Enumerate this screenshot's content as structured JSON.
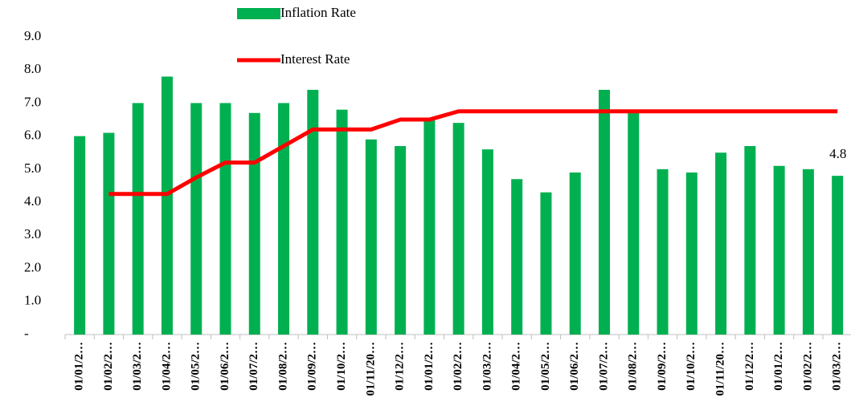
{
  "chart_data": {
    "type": "bar",
    "categories": [
      "01/01/2…",
      "01/02/2…",
      "01/03/2…",
      "01/04/2…",
      "01/05/2…",
      "01/06/2…",
      "01/07/2…",
      "01/08/2…",
      "01/09/2…",
      "01/10/2…",
      "01/11/20…",
      "01/12/2…",
      "01/01/2…",
      "01/02/2…",
      "01/03/2…",
      "01/04/2…",
      "01/05/2…",
      "01/06/2…",
      "01/07/2…",
      "01/08/2…",
      "01/09/2…",
      "01/10/2…",
      "01/11/20…",
      "01/12/2…",
      "01/01/2…",
      "01/02/2…",
      "01/03/2…"
    ],
    "series": [
      {
        "name": "Inflation Rate",
        "type": "bar",
        "color": "#00b050",
        "values": [
          6.0,
          6.1,
          7.0,
          7.8,
          7.0,
          7.0,
          6.7,
          7.0,
          7.4,
          6.8,
          5.9,
          5.7,
          6.5,
          6.4,
          5.6,
          4.7,
          4.3,
          4.9,
          7.4,
          6.8,
          5.0,
          4.9,
          5.5,
          5.7,
          5.1,
          5.0,
          4.8
        ],
        "value_labels": [
          null,
          null,
          null,
          null,
          null,
          null,
          null,
          null,
          null,
          null,
          null,
          null,
          null,
          null,
          null,
          null,
          null,
          null,
          null,
          null,
          null,
          null,
          null,
          null,
          null,
          null,
          "4.8"
        ]
      },
      {
        "name": "Interest Rate",
        "type": "line",
        "color": "#ff0000",
        "values": [
          null,
          4.25,
          4.25,
          4.25,
          4.75,
          5.2,
          5.2,
          5.7,
          6.2,
          6.2,
          6.2,
          6.5,
          6.5,
          6.75,
          6.75,
          6.75,
          6.75,
          6.75,
          6.75,
          6.75,
          6.75,
          6.75,
          6.75,
          6.75,
          6.75,
          6.75,
          6.75
        ]
      }
    ],
    "ylim": [
      0,
      9
    ],
    "yticks": [
      {
        "value": 0,
        "label": "-"
      },
      {
        "value": 1,
        "label": "1.0"
      },
      {
        "value": 2,
        "label": "2.0"
      },
      {
        "value": 3,
        "label": "3.0"
      },
      {
        "value": 4,
        "label": "4.0"
      },
      {
        "value": 5,
        "label": "5.0"
      },
      {
        "value": 6,
        "label": "6.0"
      },
      {
        "value": 7,
        "label": "7.0"
      },
      {
        "value": 8,
        "label": "8.0"
      },
      {
        "value": 9,
        "label": "9.0"
      }
    ],
    "grid": false
  }
}
